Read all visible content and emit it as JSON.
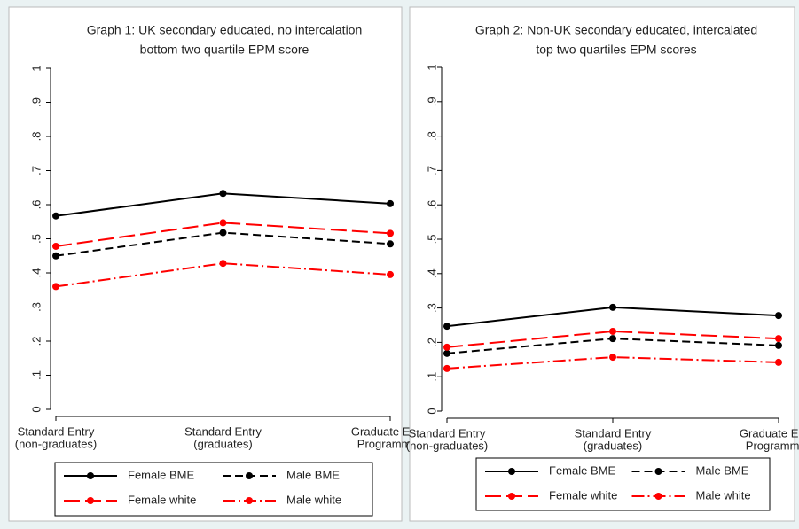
{
  "chart_data": [
    {
      "type": "line",
      "title": [
        "Graph 1: UK secondary educated, no intercalation",
        "bottom two quartile EPM score"
      ],
      "categories": [
        [
          "Standard Entry",
          "(non-graduates)"
        ],
        [
          "Standard Entry",
          "(graduates)"
        ],
        [
          "Graduate Entry",
          "Programmes"
        ]
      ],
      "ylim": [
        0,
        1
      ],
      "yticks": [
        0,
        {
          "value": 0.1,
          "label": ".1"
        },
        {
          "value": 0.2,
          "label": ".2"
        },
        {
          "value": 0.3,
          "label": ".3"
        },
        {
          "value": 0.4,
          "label": ".4"
        },
        {
          "value": 0.5,
          "label": ".5"
        },
        {
          "value": 0.6,
          "label": ".6"
        },
        {
          "value": 0.7,
          "label": ".7"
        },
        {
          "value": 0.8,
          "label": ".8"
        },
        {
          "value": 0.9,
          "label": ".9"
        },
        1
      ],
      "grid": false,
      "series": [
        {
          "name": "Female BME",
          "color": "#000000",
          "dash": "solid",
          "values": [
            0.567,
            0.633,
            0.603
          ]
        },
        {
          "name": "Male BME",
          "color": "#000000",
          "dash": "dash",
          "values": [
            0.45,
            0.518,
            0.485
          ]
        },
        {
          "name": "Female white",
          "color": "#ff0000",
          "dash": "longdash",
          "values": [
            0.478,
            0.547,
            0.516
          ]
        },
        {
          "name": "Male white",
          "color": "#ff0000",
          "dash": "dashdot",
          "values": [
            0.36,
            0.428,
            0.395
          ]
        }
      ]
    },
    {
      "type": "line",
      "title": [
        "Graph 2: Non-UK secondary educated, intercalated",
        "top two quartiles EPM scores"
      ],
      "categories": [
        [
          "Standard Entry",
          "(non-graduates)"
        ],
        [
          "Standard Entry",
          "(graduates)"
        ],
        [
          "Graduate Entry",
          "Programmes"
        ]
      ],
      "ylim": [
        0,
        1
      ],
      "yticks": [
        0,
        {
          "value": 0.1,
          "label": ".1"
        },
        {
          "value": 0.2,
          "label": ".2"
        },
        {
          "value": 0.3,
          "label": ".3"
        },
        {
          "value": 0.4,
          "label": ".4"
        },
        {
          "value": 0.5,
          "label": ".5"
        },
        {
          "value": 0.6,
          "label": ".6"
        },
        {
          "value": 0.7,
          "label": ".7"
        },
        {
          "value": 0.8,
          "label": ".8"
        },
        {
          "value": 0.9,
          "label": ".9"
        },
        1
      ],
      "grid": false,
      "series": [
        {
          "name": "Female BME",
          "color": "#000000",
          "dash": "solid",
          "values": [
            0.247,
            0.302,
            0.278
          ]
        },
        {
          "name": "Male BME",
          "color": "#000000",
          "dash": "dash",
          "values": [
            0.168,
            0.211,
            0.191
          ]
        },
        {
          "name": "Female white",
          "color": "#ff0000",
          "dash": "longdash",
          "values": [
            0.186,
            0.232,
            0.211
          ]
        },
        {
          "name": "Male white",
          "color": "#ff0000",
          "dash": "dashdot",
          "values": [
            0.124,
            0.157,
            0.142
          ]
        }
      ]
    }
  ]
}
